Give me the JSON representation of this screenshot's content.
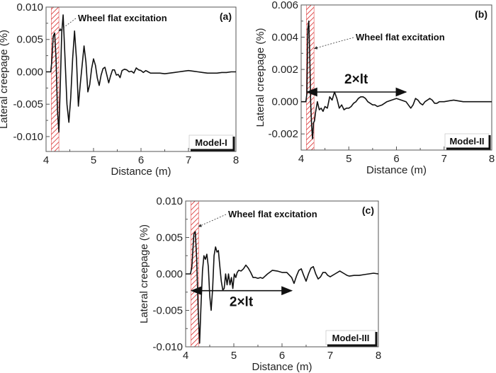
{
  "chart_data": [
    {
      "type": "line",
      "panel": "(a)",
      "model": "Model-I",
      "xlabel": "Distance (m)",
      "ylabel": "Lateral creepage (%)",
      "xlim": [
        4,
        8
      ],
      "ylim": [
        -0.0123,
        0.01
      ],
      "xticks": [
        4,
        5,
        6,
        7,
        8
      ],
      "yticks": [
        -0.01,
        -0.005,
        0.0,
        0.005,
        0.01
      ],
      "ytick_labels": [
        "-0.010",
        "-0.005",
        "0.000",
        "0.005",
        "0.010"
      ],
      "xtick_labels": [
        "4",
        "5",
        "6",
        "7",
        "8"
      ],
      "excitation_zone": [
        4.11,
        4.27
      ],
      "annotation": "Wheel flat excitation",
      "annotation_target": [
        4.27,
        0.0063
      ],
      "series": [
        {
          "name": "Lateral creepage",
          "x": [
            4.0,
            4.1,
            4.12,
            4.15,
            4.18,
            4.21,
            4.24,
            4.27,
            4.3,
            4.33,
            4.36,
            4.4,
            4.44,
            4.48,
            4.52,
            4.56,
            4.6,
            4.64,
            4.68,
            4.72,
            4.76,
            4.8,
            4.84,
            4.88,
            4.92,
            4.96,
            5.0,
            5.04,
            5.08,
            5.12,
            5.16,
            5.2,
            5.24,
            5.28,
            5.32,
            5.36,
            5.4,
            5.44,
            5.48,
            5.52,
            5.56,
            5.6,
            5.65,
            5.7,
            5.75,
            5.8,
            5.85,
            5.9,
            5.95,
            6.0,
            6.05,
            6.1,
            6.15,
            6.2,
            6.3,
            6.4,
            6.5,
            6.6,
            6.7,
            6.8,
            6.9,
            7.0,
            7.1,
            7.2,
            7.3,
            7.4,
            7.5,
            7.6,
            7.7,
            7.8,
            7.9,
            8.0
          ],
          "y": [
            0.0,
            0.0,
            0.0015,
            0.0055,
            0.006,
            0.002,
            -0.006,
            -0.0093,
            -0.002,
            0.006,
            0.0088,
            0.002,
            -0.005,
            -0.0078,
            -0.004,
            0.002,
            0.0063,
            0.002,
            -0.0053,
            -0.002,
            0.001,
            0.004,
            0.0015,
            -0.0031,
            -0.002,
            0.0005,
            0.002,
            0.001,
            -0.001,
            -0.0021,
            -0.0005,
            0.0005,
            0.0007,
            -0.0005,
            -0.0017,
            -0.0006,
            0.0003,
            0.0003,
            -0.0005,
            -0.0004,
            -0.0009,
            0.0002,
            0.0004,
            0.0003,
            0.0,
            0.0001,
            -0.0002,
            0.0006,
            0.0003,
            0.0002,
            -0.0001,
            0.0002,
            0.0,
            -0.0002,
            -0.0002,
            -0.0002,
            -0.0003,
            -0.0002,
            -0.0001,
            0.0,
            0.0001,
            0.0002,
            0.0001,
            0.0,
            -0.0001,
            -0.0002,
            -0.0002,
            -0.0002,
            -0.0001,
            -0.0001,
            0.0,
            0.0
          ]
        }
      ]
    },
    {
      "type": "line",
      "panel": "(b)",
      "model": "Model-II",
      "xlabel": "Distance (m)",
      "ylabel": "Lateral creepage (%)",
      "xlim": [
        4,
        8
      ],
      "ylim": [
        -0.003,
        0.006
      ],
      "xticks": [
        4,
        5,
        6,
        7,
        8
      ],
      "yticks": [
        -0.002,
        0.0,
        0.002,
        0.004,
        0.006
      ],
      "ytick_labels": [
        "-0.002",
        "0.000",
        "0.002",
        "0.004",
        "0.006"
      ],
      "xtick_labels": [
        "4",
        "5",
        "6",
        "7",
        "8"
      ],
      "excitation_zone": [
        4.11,
        4.27
      ],
      "annotation": "Wheel flat excitation",
      "annotation_target": [
        4.28,
        0.0033
      ],
      "span_label": "2×lt",
      "span": [
        4.11,
        6.2
      ],
      "span_y": 0.0006,
      "series": [
        {
          "name": "Lateral creepage",
          "x": [
            4.0,
            4.1,
            4.12,
            4.14,
            4.16,
            4.18,
            4.2,
            4.22,
            4.24,
            4.26,
            4.28,
            4.3,
            4.34,
            4.38,
            4.42,
            4.46,
            4.5,
            4.55,
            4.6,
            4.65,
            4.7,
            4.75,
            4.8,
            4.85,
            4.9,
            4.95,
            5.0,
            5.05,
            5.1,
            5.15,
            5.2,
            5.25,
            5.3,
            5.35,
            5.4,
            5.45,
            5.5,
            5.55,
            5.6,
            5.7,
            5.8,
            5.9,
            6.0,
            6.1,
            6.2,
            6.25,
            6.3,
            6.35,
            6.4,
            6.45,
            6.5,
            6.55,
            6.6,
            6.65,
            6.7,
            6.75,
            6.8,
            6.85,
            6.9,
            7.0,
            7.2,
            7.4,
            7.6,
            7.8,
            8.0
          ],
          "y": [
            0.0,
            0.0,
            0.0005,
            0.0045,
            0.005,
            0.003,
            0.0,
            -0.0015,
            -0.0023,
            -0.0013,
            -0.0012,
            -0.0007,
            0.0,
            -0.0005,
            -0.0004,
            -0.0006,
            -0.0003,
            -0.0004,
            0.0003,
            0.0001,
            0.0006,
            0.0002,
            -0.0004,
            -0.0002,
            -0.0005,
            -0.0004,
            -0.0004,
            -0.0003,
            -0.0001,
            0.0,
            0.0002,
            0.0003,
            0.0003,
            0.0002,
            0.0,
            -0.0001,
            -0.0002,
            -0.0002,
            -0.0003,
            -0.0002,
            0.0,
            0.0001,
            0.0002,
            0.0001,
            0.0,
            -0.0002,
            -0.0004,
            -0.0002,
            0.0002,
            0.0001,
            -0.0001,
            -0.0002,
            0.0,
            0.0001,
            0.0002,
            0.0001,
            -0.0001,
            -0.0001,
            0.0,
            0.0,
            0.0001,
            0.0,
            0.0,
            0.0,
            0.0
          ]
        }
      ]
    },
    {
      "type": "line",
      "panel": "(c)",
      "model": "Model-III",
      "xlabel": "Distance (m)",
      "ylabel": "Lateral creepage (%)",
      "xlim": [
        4,
        8
      ],
      "ylim": [
        -0.01,
        0.01
      ],
      "xticks": [
        4,
        5,
        6,
        7,
        8
      ],
      "yticks": [
        -0.01,
        -0.005,
        0.0,
        0.005,
        0.01
      ],
      "ytick_labels": [
        "-0.010",
        "-0.005",
        "0.000",
        "0.005",
        "0.010"
      ],
      "xtick_labels": [
        "4",
        "5",
        "6",
        "7",
        "8"
      ],
      "excitation_zone": [
        4.11,
        4.27
      ],
      "annotation": "Wheel flat excitation",
      "annotation_target": [
        4.27,
        0.0065
      ],
      "span_label": "2×lt",
      "span": [
        4.11,
        6.2
      ],
      "span_y": -0.0023,
      "series": [
        {
          "name": "Lateral creepage",
          "x": [
            4.0,
            4.1,
            4.13,
            4.17,
            4.2,
            4.23,
            4.26,
            4.29,
            4.32,
            4.35,
            4.38,
            4.41,
            4.44,
            4.47,
            4.5,
            4.53,
            4.56,
            4.59,
            4.62,
            4.65,
            4.68,
            4.71,
            4.74,
            4.77,
            4.8,
            4.83,
            4.86,
            4.89,
            4.92,
            4.95,
            4.98,
            5.01,
            5.04,
            5.07,
            5.1,
            5.15,
            5.2,
            5.25,
            5.3,
            5.35,
            5.4,
            5.45,
            5.5,
            5.55,
            5.6,
            5.7,
            5.8,
            5.9,
            6.0,
            6.1,
            6.2,
            6.25,
            6.3,
            6.35,
            6.4,
            6.45,
            6.5,
            6.55,
            6.6,
            6.65,
            6.7,
            6.75,
            6.8,
            6.85,
            6.9,
            6.95,
            7.0,
            7.1,
            7.2,
            7.3,
            7.35,
            7.4,
            7.5,
            7.6,
            7.7,
            7.8,
            7.9,
            8.0
          ],
          "y": [
            0.0,
            0.0,
            0.001,
            0.0055,
            0.0058,
            0.002,
            -0.005,
            -0.0095,
            -0.004,
            0.0005,
            0.0025,
            0.002,
            0.0027,
            0.001,
            -0.003,
            -0.005,
            -0.002,
            0.0025,
            0.0037,
            0.003,
            0.0032,
            0.001,
            -0.001,
            -0.0022,
            -0.002,
            0.0,
            -0.0015,
            0.0,
            -0.0015,
            -0.0005,
            -0.002,
            0.0,
            -0.0005,
            0.0002,
            0.0005,
            0.0004,
            0.0007,
            0.0012,
            0.0008,
            0.0002,
            -0.0005,
            -0.0005,
            -0.0006,
            -0.0005,
            -0.0006,
            0.0,
            0.0005,
            0.0004,
            0.0002,
            0.0002,
            -0.0005,
            -0.0013,
            -0.0003,
            0.0005,
            0.0007,
            -0.0002,
            -0.001,
            0.0,
            0.0008,
            0.001,
            0.0,
            -0.0007,
            -0.0004,
            0.0002,
            0.0002,
            -0.0002,
            -0.0004,
            0.0,
            0.0004,
            0.0,
            -0.0002,
            -0.0003,
            -0.0002,
            -0.0002,
            -0.0001,
            0.0,
            0.0001,
            0.0
          ]
        }
      ]
    }
  ]
}
